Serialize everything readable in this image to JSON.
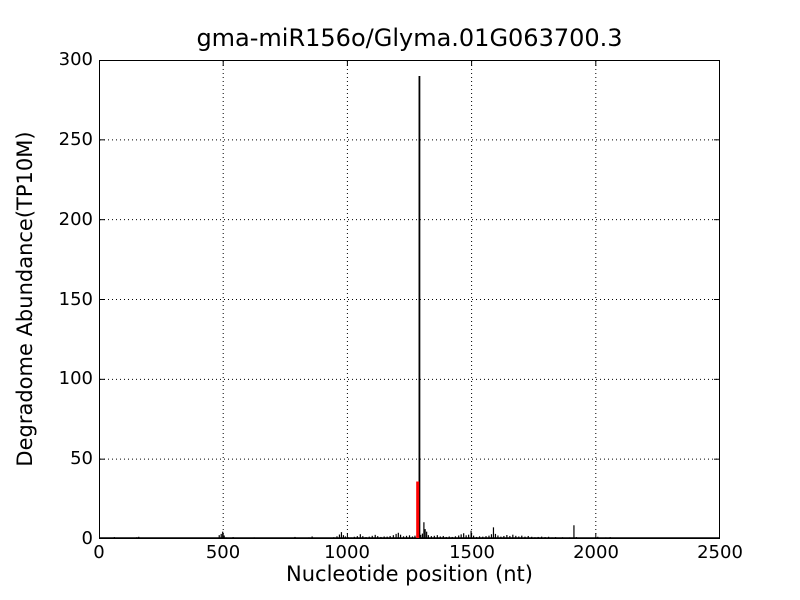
{
  "figure": {
    "background": "#ffffff"
  },
  "chart_data": {
    "type": "line",
    "subtype": "degradome-spike-plot",
    "title": "gma-miR156o/Glyma.01G063700.3",
    "xlabel": "Nucleotide position (nt)",
    "ylabel": "Degradome Abundance(TP10M)",
    "xlim": [
      0,
      2500
    ],
    "ylim": [
      0,
      300
    ],
    "xticks": [
      0,
      500,
      1000,
      1500,
      2000,
      2500
    ],
    "yticks": [
      0,
      50,
      100,
      150,
      200,
      250,
      300
    ],
    "xtick_labels": [
      "0",
      "500",
      "1000",
      "1500",
      "2000",
      "2500"
    ],
    "ytick_labels": [
      "0",
      "50",
      "100",
      "150",
      "200",
      "250",
      "300"
    ],
    "grid": {
      "visible": true,
      "style": "dotted",
      "color": "#000000",
      "x_at": [
        500,
        1000,
        1500,
        2000
      ],
      "y_at": [
        50,
        100,
        150,
        200,
        250
      ]
    },
    "legend": null,
    "colors": {
      "signal": "#000000",
      "cleavage_site": "#ff0000",
      "frame": "#000000",
      "background": "#ffffff"
    },
    "main_peak": {
      "x": 1290,
      "value": 290,
      "color": "#000000"
    },
    "cleavage_peak": {
      "x": 1283,
      "value": 36,
      "color": "#ff0000"
    },
    "noise": [
      [
        55,
        0.8
      ],
      [
        62,
        1.2
      ],
      [
        70,
        0.7
      ],
      [
        78,
        0.5
      ],
      [
        95,
        0.4
      ],
      [
        110,
        0.5
      ],
      [
        125,
        0.6
      ],
      [
        140,
        0.5
      ],
      [
        152,
        1.1
      ],
      [
        160,
        1.4
      ],
      [
        170,
        0.9
      ],
      [
        182,
        0.6
      ],
      [
        200,
        0.4
      ],
      [
        215,
        0.5
      ],
      [
        230,
        0.6
      ],
      [
        245,
        0.5
      ],
      [
        260,
        0.4
      ],
      [
        275,
        0.6
      ],
      [
        290,
        0.4
      ],
      [
        305,
        0.9
      ],
      [
        320,
        0.5
      ],
      [
        335,
        0.4
      ],
      [
        350,
        0.5
      ],
      [
        365,
        0.4
      ],
      [
        380,
        0.6
      ],
      [
        395,
        0.5
      ],
      [
        410,
        0.4
      ],
      [
        425,
        0.6
      ],
      [
        440,
        0.8
      ],
      [
        455,
        0.5
      ],
      [
        470,
        0.7
      ],
      [
        484,
        2.4
      ],
      [
        492,
        3.2
      ],
      [
        498,
        4.6
      ],
      [
        504,
        2.2
      ],
      [
        512,
        1.0
      ],
      [
        525,
        0.6
      ],
      [
        540,
        1.2
      ],
      [
        552,
        0.8
      ],
      [
        565,
        0.6
      ],
      [
        580,
        0.5
      ],
      [
        595,
        0.7
      ],
      [
        610,
        0.5
      ],
      [
        625,
        1.0
      ],
      [
        640,
        0.6
      ],
      [
        655,
        0.5
      ],
      [
        670,
        0.7
      ],
      [
        685,
        0.5
      ],
      [
        700,
        0.6
      ],
      [
        715,
        0.9
      ],
      [
        730,
        0.6
      ],
      [
        745,
        0.5
      ],
      [
        760,
        0.8
      ],
      [
        775,
        0.6
      ],
      [
        789,
        1.3
      ],
      [
        800,
        0.9
      ],
      [
        815,
        0.6
      ],
      [
        830,
        0.7
      ],
      [
        845,
        1.0
      ],
      [
        858,
        1.6
      ],
      [
        870,
        0.9
      ],
      [
        885,
        0.6
      ],
      [
        900,
        0.8
      ],
      [
        915,
        0.7
      ],
      [
        930,
        0.9
      ],
      [
        945,
        1.1
      ],
      [
        958,
        1.7
      ],
      [
        968,
        2.8
      ],
      [
        976,
        4.3
      ],
      [
        984,
        2.4
      ],
      [
        992,
        1.6
      ],
      [
        1002,
        1.2
      ],
      [
        1015,
        1.0
      ],
      [
        1028,
        1.4
      ],
      [
        1040,
        1.8
      ],
      [
        1052,
        3.0
      ],
      [
        1062,
        1.8
      ],
      [
        1075,
        1.2
      ],
      [
        1088,
        1.5
      ],
      [
        1100,
        2.0
      ],
      [
        1112,
        2.6
      ],
      [
        1122,
        1.8
      ],
      [
        1135,
        1.3
      ],
      [
        1148,
        1.6
      ],
      [
        1160,
        1.5
      ],
      [
        1172,
        1.9
      ],
      [
        1185,
        2.4
      ],
      [
        1196,
        3.2
      ],
      [
        1205,
        3.9
      ],
      [
        1214,
        2.7
      ],
      [
        1226,
        1.7
      ],
      [
        1238,
        2.0
      ],
      [
        1250,
        2.3
      ],
      [
        1262,
        1.6
      ],
      [
        1272,
        2.1
      ],
      [
        1295,
        2.6
      ],
      [
        1302,
        3.4
      ],
      [
        1308,
        10.5
      ],
      [
        1313,
        6.2
      ],
      [
        1319,
        4.6
      ],
      [
        1326,
        2.4
      ],
      [
        1338,
        1.8
      ],
      [
        1350,
        2.0
      ],
      [
        1362,
        2.4
      ],
      [
        1374,
        1.6
      ],
      [
        1386,
        1.9
      ],
      [
        1398,
        1.3
      ],
      [
        1410,
        1.6
      ],
      [
        1422,
        1.3
      ],
      [
        1435,
        1.7
      ],
      [
        1448,
        2.2
      ],
      [
        1458,
        2.9
      ],
      [
        1468,
        3.6
      ],
      [
        1478,
        2.3
      ],
      [
        1488,
        2.7
      ],
      [
        1498,
        5.2
      ],
      [
        1508,
        2.1
      ],
      [
        1520,
        1.3
      ],
      [
        1532,
        1.7
      ],
      [
        1545,
        1.5
      ],
      [
        1558,
        1.8
      ],
      [
        1570,
        2.1
      ],
      [
        1580,
        3.0
      ],
      [
        1588,
        7.3
      ],
      [
        1596,
        3.2
      ],
      [
        1606,
        2.2
      ],
      [
        1618,
        1.5
      ],
      [
        1630,
        1.9
      ],
      [
        1642,
        2.5
      ],
      [
        1654,
        1.9
      ],
      [
        1666,
        2.7
      ],
      [
        1678,
        2.0
      ],
      [
        1690,
        1.6
      ],
      [
        1702,
        2.1
      ],
      [
        1715,
        1.5
      ],
      [
        1728,
        1.9
      ],
      [
        1742,
        1.4
      ],
      [
        1755,
        1.1
      ],
      [
        1768,
        1.3
      ],
      [
        1782,
        1.5
      ],
      [
        1796,
        1.2
      ],
      [
        1810,
        1.4
      ],
      [
        1824,
        1.0
      ],
      [
        1838,
        1.2
      ],
      [
        1852,
        0.9
      ],
      [
        1866,
        1.1
      ],
      [
        1880,
        0.8
      ],
      [
        1895,
        1.0
      ],
      [
        1912,
        8.6
      ],
      [
        1922,
        1.2
      ],
      [
        1935,
        0.8
      ],
      [
        1950,
        0.6
      ],
      [
        1965,
        0.8
      ],
      [
        1980,
        0.5
      ],
      [
        1995,
        0.7
      ],
      [
        2008,
        1.4
      ],
      [
        2022,
        0.8
      ],
      [
        2040,
        1.0
      ],
      [
        2058,
        1.2
      ],
      [
        2075,
        0.9
      ],
      [
        2090,
        0.6
      ],
      [
        2110,
        0.4
      ],
      [
        2140,
        0.3
      ],
      [
        2180,
        0.3
      ],
      [
        2230,
        0.3
      ],
      [
        2290,
        0.2
      ],
      [
        2350,
        0.2
      ],
      [
        2420,
        0.2
      ]
    ]
  }
}
